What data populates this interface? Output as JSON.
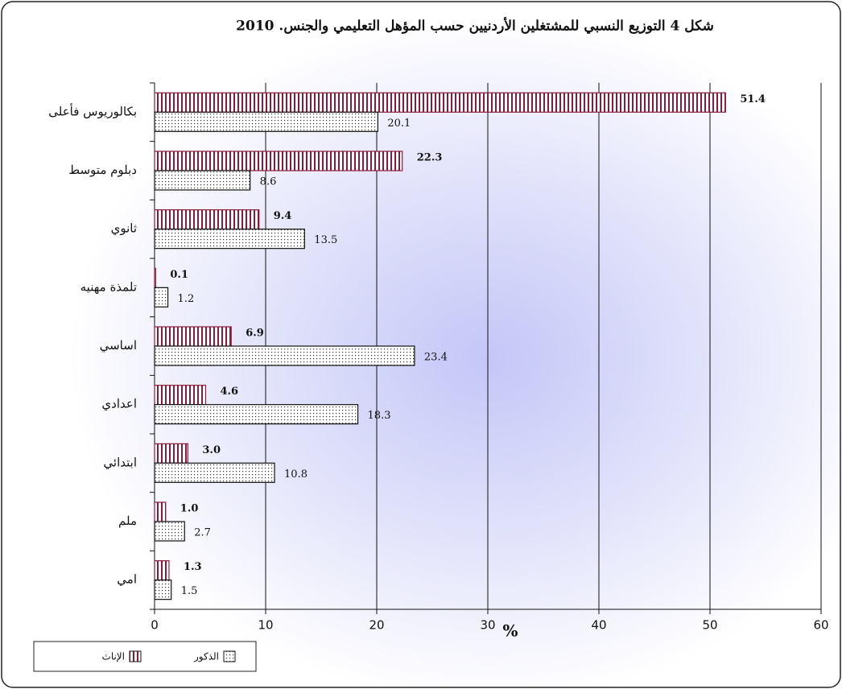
{
  "chart_data": {
    "type": "hbar",
    "title": "شكل 4 التوزيع النسبي للمشتغلين الأردنيين حسب المؤهل التعليمي والجنس. 2010",
    "categories": [
      "بكالوريوس فأعلى",
      "دبلوم متوسط",
      "ثانوي",
      "تلمذة مهنيه",
      "اساسي",
      "اعدادي",
      "ابتدائي",
      "ملم",
      "امي"
    ],
    "series": [
      {
        "name": "الإناث",
        "color": "#8b1a3a",
        "values": [
          51.4,
          22.3,
          9.4,
          0.1,
          6.9,
          4.6,
          3.0,
          1.0,
          1.3
        ],
        "value_labels": [
          "51.4",
          "22.3",
          "9.4",
          "0.1",
          "6.9",
          "4.6",
          "3.0",
          "1.0",
          "1.3"
        ]
      },
      {
        "name": "الذكور",
        "color": "#333333",
        "values": [
          20.1,
          8.6,
          13.5,
          1.2,
          23.4,
          18.3,
          10.8,
          2.7,
          1.5
        ]
      }
    ],
    "x_label": "%",
    "xlim": [
      0,
      60
    ],
    "xticks": [
      0,
      10,
      20,
      30,
      40,
      50,
      60
    ],
    "grid": true
  }
}
